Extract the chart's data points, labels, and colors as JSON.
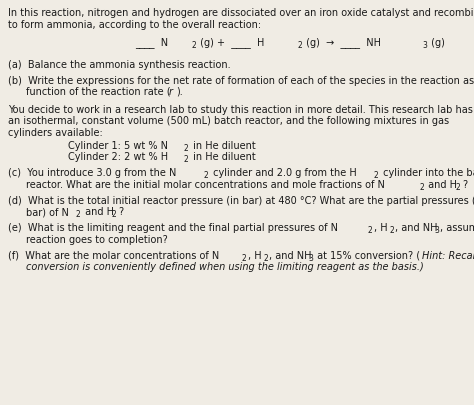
{
  "bg_color": "#f0ece4",
  "text_color": "#1a1a1a",
  "figsize": [
    4.74,
    4.06
  ],
  "dpi": 100,
  "fontsize": 7.0
}
